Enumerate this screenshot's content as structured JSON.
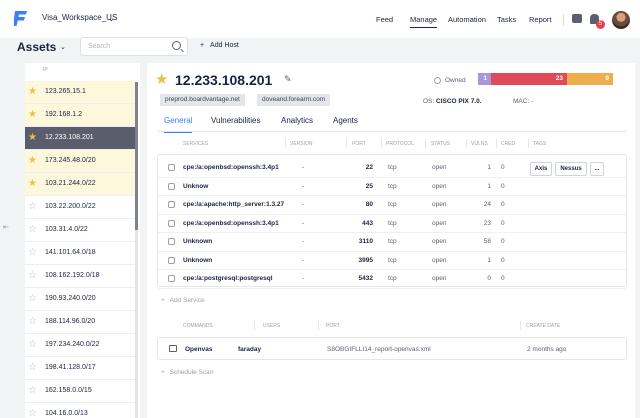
{
  "topbar": {
    "workspace": "Visa_Workspace_US",
    "nav": [
      "Feed",
      "Manage",
      "Automation",
      "Tasks",
      "Report"
    ],
    "notification_count": "5"
  },
  "assets": {
    "title": "Assets",
    "search_placeholder": "Search",
    "add_host_label": "Add Host"
  },
  "hosts_list": {
    "column_header": "IP",
    "items": [
      {
        "ip": "123.265.15.1",
        "favorite": true,
        "selected": false
      },
      {
        "ip": "192.168.1.2",
        "favorite": true,
        "selected": false
      },
      {
        "ip": "12.233.108.201",
        "favorite": true,
        "selected": true
      },
      {
        "ip": "173.245.48.0/20",
        "favorite": true,
        "selected": false
      },
      {
        "ip": "103.21.244.0/22",
        "favorite": true,
        "selected": false
      },
      {
        "ip": "103.22.200.0/22",
        "favorite": false,
        "selected": false
      },
      {
        "ip": "103.31.4.0/22",
        "favorite": false,
        "selected": false
      },
      {
        "ip": "141.101.64.0/18",
        "favorite": false,
        "selected": false
      },
      {
        "ip": "108.162.192.0/18",
        "favorite": false,
        "selected": false
      },
      {
        "ip": "190.93.240.0/20",
        "favorite": false,
        "selected": false
      },
      {
        "ip": "188.114.96.0/20",
        "favorite": false,
        "selected": false
      },
      {
        "ip": "197.234.240.0/22",
        "favorite": false,
        "selected": false
      },
      {
        "ip": "198.41.128.0/17",
        "favorite": false,
        "selected": false
      },
      {
        "ip": "162.158.0.0/15",
        "favorite": false,
        "selected": false
      },
      {
        "ip": "104.16.0.0/13",
        "favorite": false,
        "selected": false
      }
    ]
  },
  "host": {
    "ip": "12.233.108.201",
    "hostnames": [
      "preprod.boardvantage.net",
      "doveand.forearm.com"
    ],
    "owned_label": "Owned",
    "vuln_counts": {
      "low": "1",
      "high": "23",
      "medium": "9"
    },
    "colors": {
      "low": "#a897dd",
      "high": "#e04a57",
      "medium": "#f0ad4e",
      "accent": "#3f7ff5"
    },
    "os_label": "OS:",
    "os_value": "CISCO PIX 7.0.",
    "mac_label": "MAC:",
    "mac_value": "-"
  },
  "tabs": [
    "General",
    "Vulnerabilities",
    "Analytics",
    "Agents"
  ],
  "services": {
    "headers": [
      "SERVICES",
      "VERSION",
      "PORT",
      "PROTOCOL",
      "STATUS",
      "VULNS",
      "CRED",
      "TAGS"
    ],
    "rows": [
      {
        "name": "cpe:/a:openbsd:openssh:3.4p1",
        "version": "-",
        "port": "22",
        "protocol": "tcp",
        "status": "open",
        "vulns": "1",
        "cred": "0"
      },
      {
        "name": "Unknow",
        "version": "-",
        "port": "25",
        "protocol": "tcp",
        "status": "open",
        "vulns": "1",
        "cred": "0"
      },
      {
        "name": "cpe:/a:apache:http_server:1.3.27",
        "version": "-",
        "port": "80",
        "protocol": "tcp",
        "status": "open",
        "vulns": "24",
        "cred": "0"
      },
      {
        "name": "cpe:/a:openbsd:openssh:3.4p1",
        "version": "-",
        "port": "443",
        "protocol": "tcp",
        "status": "open",
        "vulns": "23",
        "cred": "0"
      },
      {
        "name": "Unknown",
        "version": "-",
        "port": "3110",
        "protocol": "tcp",
        "status": "open",
        "vulns": "58",
        "cred": "0"
      },
      {
        "name": "Unknown",
        "version": "-",
        "port": "3995",
        "protocol": "tcp",
        "status": "open",
        "vulns": "1",
        "cred": "0"
      },
      {
        "name": "cpe:/a:postgresql:postgresql",
        "version": "-",
        "port": "5432",
        "protocol": "tcp",
        "status": "open",
        "vulns": "0",
        "cred": "0"
      }
    ],
    "tag_buttons": [
      "Axis",
      "Nessus",
      "..."
    ],
    "add_service_label": "Add Service"
  },
  "commands": {
    "headers": [
      "COMMANDS",
      "USERS",
      "PORT",
      "CREATE DATE"
    ],
    "rows": [
      {
        "command": "Openvas",
        "user": "faraday",
        "port": "S8OBGIFLLI14_report-openvas.xml",
        "date": "2 months ago"
      }
    ],
    "schedule_label": "Schedule Scan"
  }
}
